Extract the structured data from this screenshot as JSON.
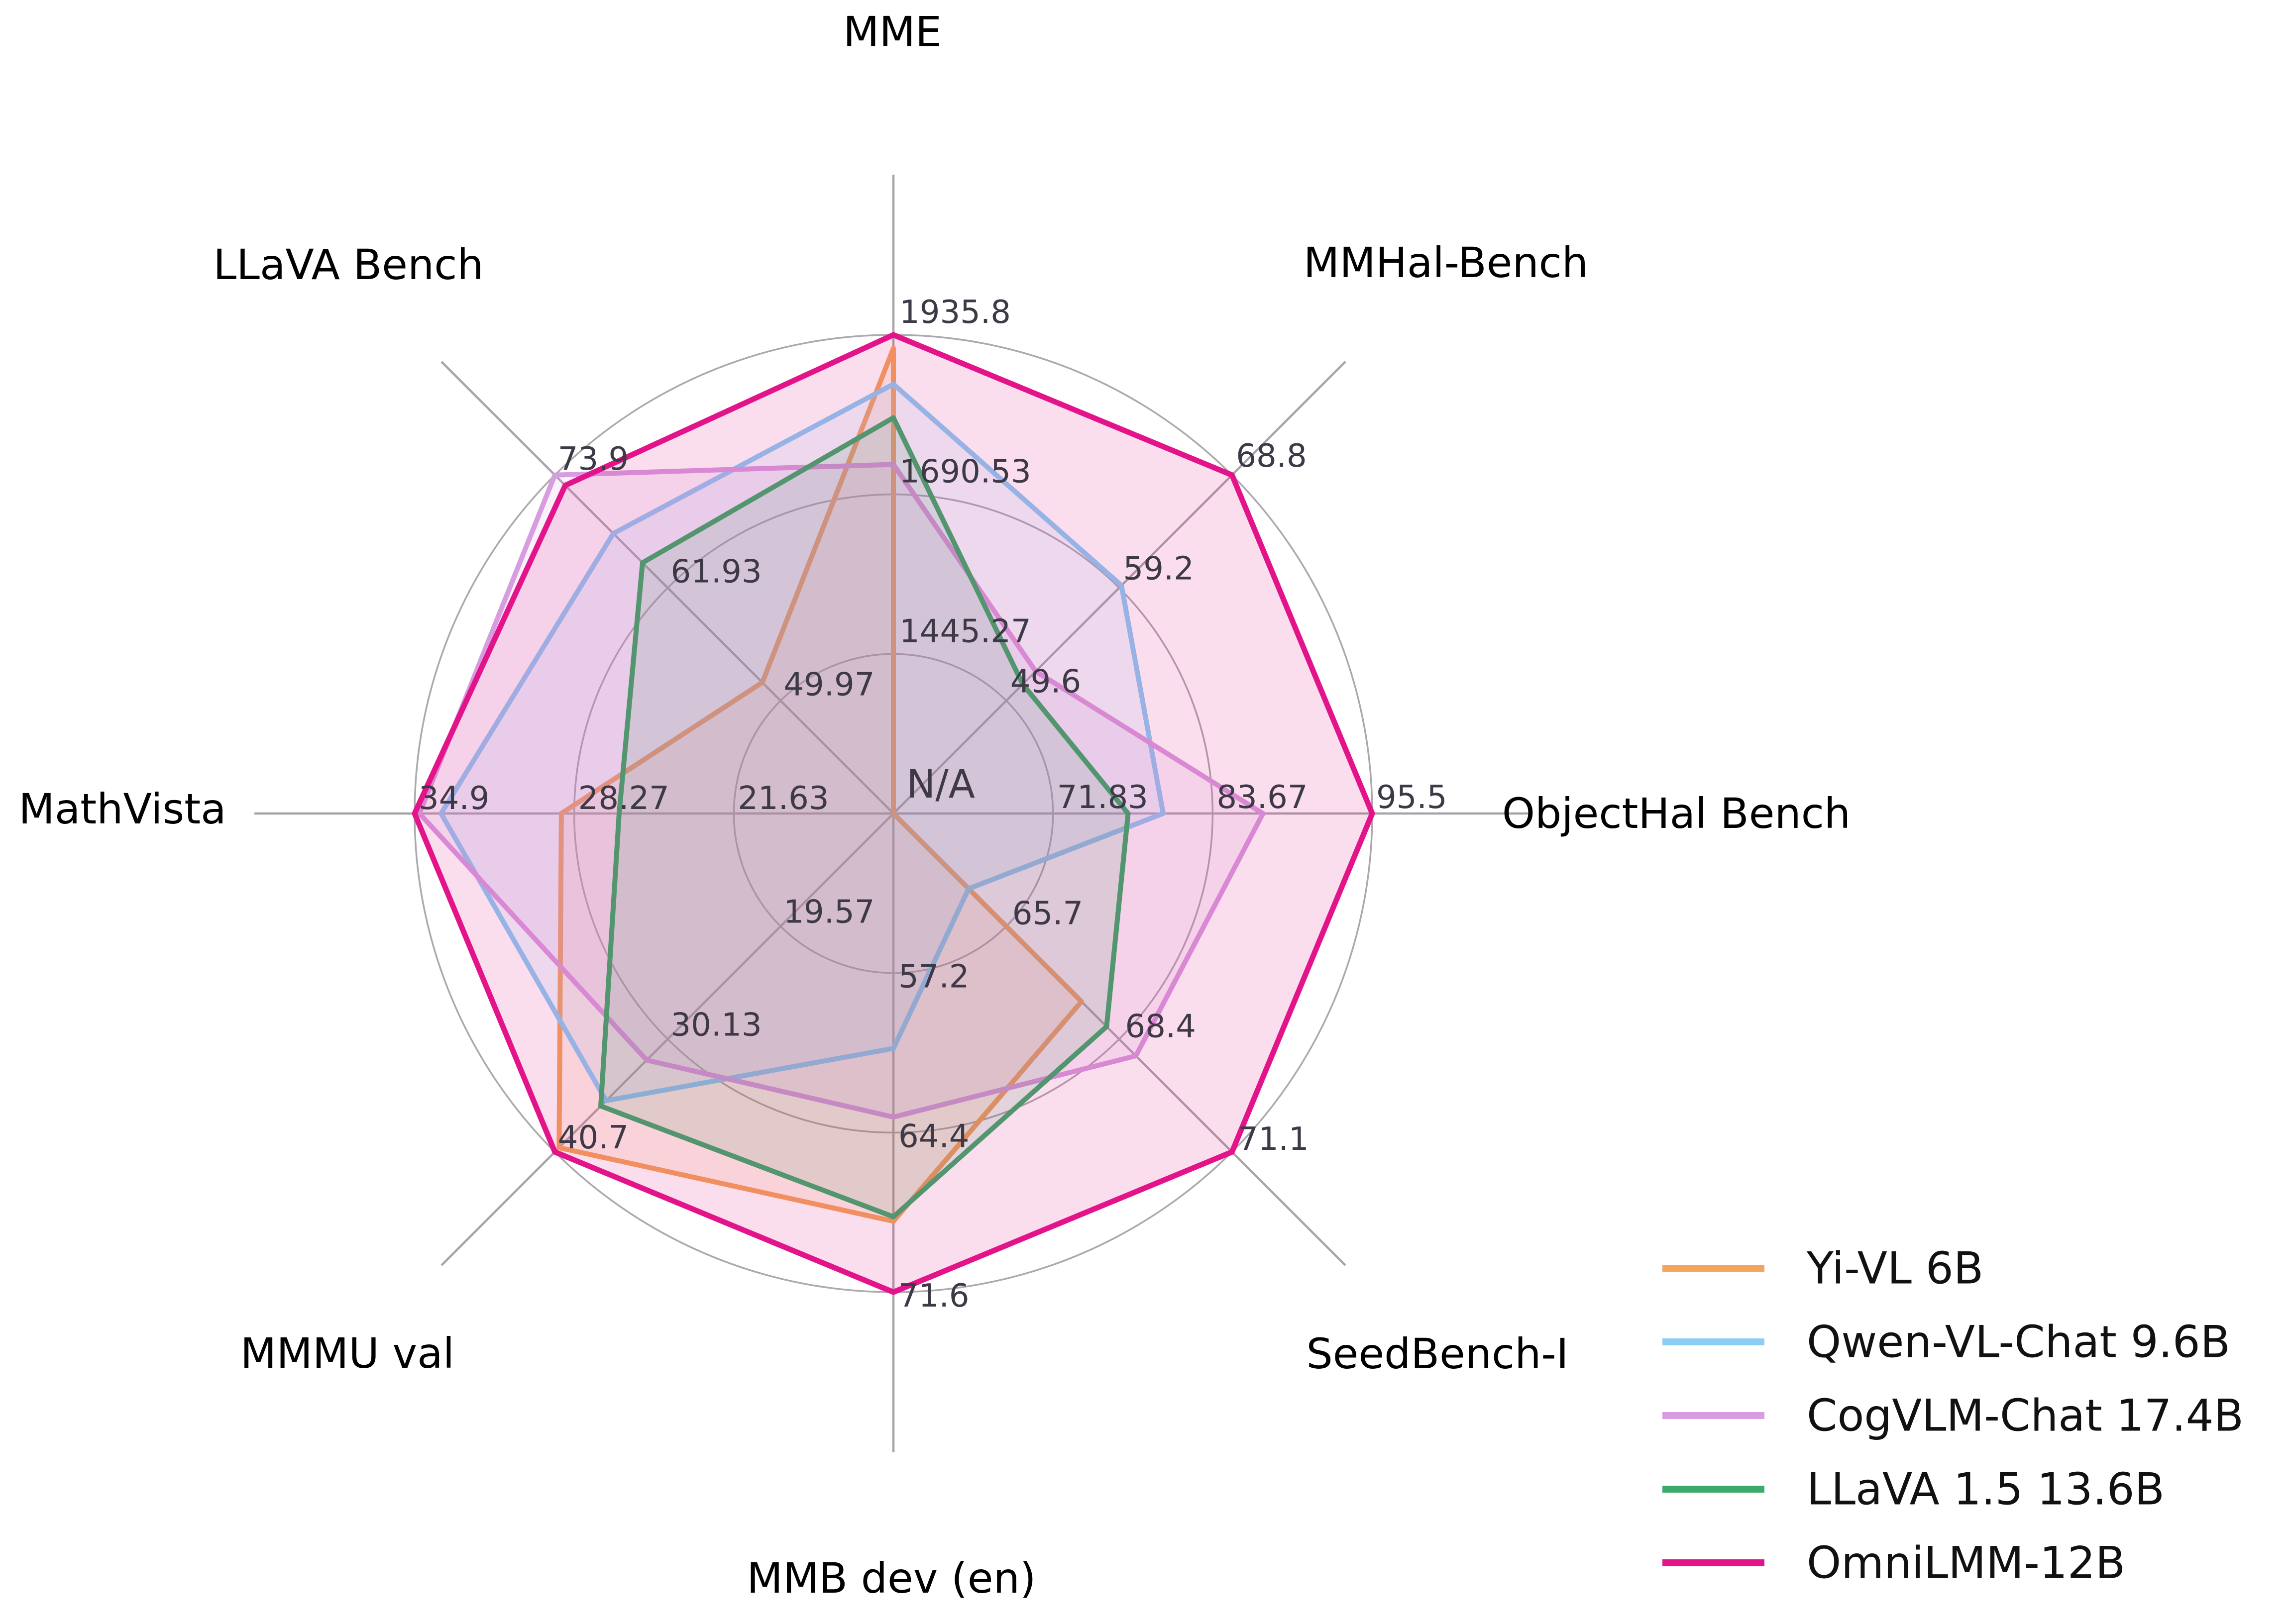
{
  "chart_data": {
    "type": "radar",
    "title": "",
    "center_label": "N/A",
    "grid": {
      "rings": 3,
      "ring_color": "#ACA8AE",
      "spoke_color": "#A7A3A9",
      "tick_text_color": "#3E3947",
      "axis_label_color": "#000000"
    },
    "axes": [
      {
        "label": "MME",
        "center_value": 1200,
        "max": 1935.8,
        "ticks": [
          "1445.27",
          "1690.53",
          "1935.8"
        ],
        "center_tick": "N/A"
      },
      {
        "label": "MMHal-Bench",
        "center_value": 40,
        "max": 68.8,
        "ticks": [
          "49.6",
          "59.2",
          "68.8"
        ]
      },
      {
        "label": "ObjectHal Bench",
        "center_value": 60,
        "max": 95.5,
        "ticks": [
          "71.83",
          "83.67",
          "95.5"
        ]
      },
      {
        "label": "SeedBench-I",
        "center_value": 63,
        "max": 71.1,
        "ticks": [
          "65.7",
          "68.4",
          "71.1"
        ]
      },
      {
        "label": "MMB dev (en)",
        "center_value": 50,
        "max": 71.6,
        "ticks": [
          "57.2",
          "64.4",
          "71.6"
        ]
      },
      {
        "label": "MMMU val",
        "center_value": 9,
        "max": 40.7,
        "ticks": [
          "19.57",
          "30.13",
          "40.7"
        ]
      },
      {
        "label": "MathVista",
        "center_value": 15,
        "max": 34.9,
        "ticks": [
          "21.63",
          "28.27",
          "34.9"
        ]
      },
      {
        "label": "LLaVA Bench",
        "center_value": 38,
        "max": 73.9,
        "ticks": [
          "49.97",
          "61.93",
          "73.9"
        ]
      }
    ],
    "series": [
      {
        "name": "Yi-VL 6B",
        "color": "#F5A45B",
        "values": [
          1915.1,
          null,
          null,
          67.5,
          68.4,
          40.3,
          28.8,
          51.9
        ]
      },
      {
        "name": "Qwen-VL-Chat 9.6B",
        "color": "#8BCDF5",
        "values": [
          1860.0,
          59.4,
          80.0,
          64.8,
          60.6,
          35.9,
          33.8,
          67.7
        ]
      },
      {
        "name": "CogVLM-Chat 17.4B",
        "color": "#D89CE0",
        "values": [
          1736.6,
          52.1,
          87.4,
          68.8,
          63.7,
          32.1,
          34.7,
          73.9
        ]
      },
      {
        "name": "LLaVA 1.5 13.6B",
        "color": "#3BAA6B",
        "values": [
          1808.4,
          51.0,
          77.4,
          68.1,
          68.2,
          36.4,
          26.4,
          64.6
        ]
      },
      {
        "name": "OmniLMM-12B",
        "color": "#E3148A",
        "values": [
          1935.8,
          68.8,
          95.5,
          71.1,
          71.6,
          40.7,
          34.9,
          72.8
        ]
      }
    ],
    "legend_position": "bottom-right"
  }
}
